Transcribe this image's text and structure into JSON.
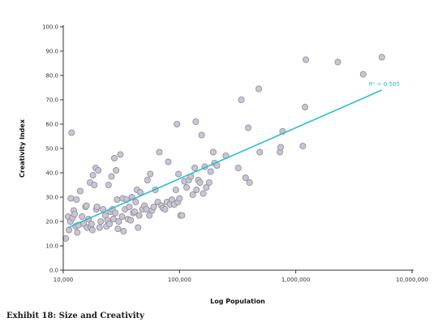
{
  "caption": "Exhibit 18: Size and Creativity",
  "colors": {
    "point_fill": "#c9c5d3",
    "point_stroke": "#8e8a99",
    "trend_line": "#2cbdd3",
    "axis": "#333333"
  },
  "chart_data": {
    "type": "scatter",
    "title": "",
    "xlabel": "Log Population",
    "ylabel": "Creativity Index",
    "x_scale": "log",
    "xlim": [
      10000,
      10000000
    ],
    "ylim": [
      0,
      100
    ],
    "x_ticks": [
      10000,
      100000,
      1000000,
      10000000
    ],
    "x_tick_labels": [
      "10,000",
      "100,000",
      "1,000,000",
      "10,000,000"
    ],
    "y_ticks": [
      0,
      10,
      20,
      30,
      40,
      50,
      60,
      70,
      80,
      90,
      100
    ],
    "y_tick_labels": [
      "0.0",
      "10.0",
      "20.0",
      "30.0",
      "40.0",
      "50.0",
      "60.0",
      "70.0",
      "80.0",
      "90.0",
      "100.0"
    ],
    "grid": false,
    "legend": "none",
    "trendline": {
      "label": "R² = 0.585",
      "start": [
        11000,
        17.5
      ],
      "end": [
        5500000,
        74
      ]
    },
    "points": [
      [
        10500,
        13
      ],
      [
        11000,
        22
      ],
      [
        11200,
        16.5
      ],
      [
        11500,
        20
      ],
      [
        11600,
        29.5
      ],
      [
        11800,
        56.5
      ],
      [
        12000,
        21.5
      ],
      [
        12300,
        24.5
      ],
      [
        12500,
        23
      ],
      [
        12800,
        18
      ],
      [
        13000,
        29
      ],
      [
        13200,
        15.5
      ],
      [
        13500,
        18.5
      ],
      [
        14000,
        32.5
      ],
      [
        14500,
        22
      ],
      [
        15000,
        19
      ],
      [
        15500,
        26
      ],
      [
        15800,
        26.5
      ],
      [
        16000,
        17.5
      ],
      [
        16500,
        21
      ],
      [
        17000,
        36
      ],
      [
        17200,
        18
      ],
      [
        17500,
        19
      ],
      [
        17800,
        16.5
      ],
      [
        18000,
        39
      ],
      [
        18500,
        35
      ],
      [
        19000,
        42
      ],
      [
        19200,
        25
      ],
      [
        19500,
        26
      ],
      [
        20000,
        41
      ],
      [
        20500,
        17.5
      ],
      [
        21000,
        20
      ],
      [
        22000,
        25
      ],
      [
        23000,
        22.5
      ],
      [
        23500,
        18
      ],
      [
        24000,
        20.5
      ],
      [
        24500,
        35
      ],
      [
        25000,
        19
      ],
      [
        25500,
        24
      ],
      [
        26000,
        38.5
      ],
      [
        26500,
        25
      ],
      [
        27000,
        21
      ],
      [
        27500,
        46
      ],
      [
        28000,
        23.5
      ],
      [
        28500,
        41
      ],
      [
        29000,
        29
      ],
      [
        29500,
        17
      ],
      [
        30000,
        20
      ],
      [
        31000,
        47.5
      ],
      [
        32000,
        22
      ],
      [
        32500,
        29.5
      ],
      [
        33000,
        16
      ],
      [
        34000,
        25
      ],
      [
        35000,
        29
      ],
      [
        36000,
        21
      ],
      [
        37000,
        26
      ],
      [
        38000,
        20.5
      ],
      [
        39000,
        30
      ],
      [
        40000,
        23.5
      ],
      [
        41000,
        24
      ],
      [
        42000,
        28
      ],
      [
        43000,
        33
      ],
      [
        44000,
        17.5
      ],
      [
        45000,
        22.5
      ],
      [
        46000,
        32
      ],
      [
        48000,
        25
      ],
      [
        50000,
        26.5
      ],
      [
        52000,
        25
      ],
      [
        53000,
        37
      ],
      [
        55000,
        22.5
      ],
      [
        56000,
        39.5
      ],
      [
        58000,
        24.5
      ],
      [
        60000,
        26
      ],
      [
        62000,
        33
      ],
      [
        65000,
        28
      ],
      [
        67000,
        48.5
      ],
      [
        70000,
        26.5
      ],
      [
        72000,
        25.5
      ],
      [
        75000,
        25
      ],
      [
        78000,
        28
      ],
      [
        80000,
        44.5
      ],
      [
        83000,
        27
      ],
      [
        86000,
        29
      ],
      [
        90000,
        27
      ],
      [
        93000,
        33
      ],
      [
        95000,
        60
      ],
      [
        97000,
        28
      ],
      [
        98000,
        39.5
      ],
      [
        100000,
        29.5
      ],
      [
        102000,
        22.5
      ],
      [
        105000,
        22.5
      ],
      [
        110000,
        36.5
      ],
      [
        115000,
        34
      ],
      [
        120000,
        37
      ],
      [
        125000,
        38.5
      ],
      [
        130000,
        31
      ],
      [
        135000,
        42
      ],
      [
        138000,
        61
      ],
      [
        140000,
        33
      ],
      [
        145000,
        37
      ],
      [
        150000,
        36
      ],
      [
        155000,
        55.5
      ],
      [
        160000,
        31.5
      ],
      [
        165000,
        42.5
      ],
      [
        170000,
        34
      ],
      [
        180000,
        36
      ],
      [
        185000,
        40.5
      ],
      [
        195000,
        48.5
      ],
      [
        200000,
        44
      ],
      [
        210000,
        43
      ],
      [
        250000,
        47
      ],
      [
        320000,
        42
      ],
      [
        340000,
        70
      ],
      [
        370000,
        38
      ],
      [
        390000,
        58.5
      ],
      [
        400000,
        36
      ],
      [
        480000,
        74.5
      ],
      [
        490000,
        48.5
      ],
      [
        730000,
        48.5
      ],
      [
        740000,
        50.5
      ],
      [
        770000,
        57
      ],
      [
        1150000,
        51
      ],
      [
        1200000,
        67
      ],
      [
        1220000,
        86.5
      ],
      [
        2300000,
        85.5
      ],
      [
        3800000,
        80.5
      ],
      [
        5500000,
        87.5
      ]
    ]
  }
}
